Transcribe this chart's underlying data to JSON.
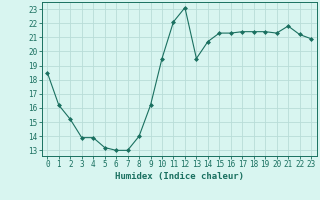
{
  "x": [
    0,
    1,
    2,
    3,
    4,
    5,
    6,
    7,
    8,
    9,
    10,
    11,
    12,
    13,
    14,
    15,
    16,
    17,
    18,
    19,
    20,
    21,
    22,
    23
  ],
  "y": [
    18.5,
    16.2,
    15.2,
    13.9,
    13.9,
    13.2,
    13.0,
    13.0,
    14.0,
    16.2,
    19.5,
    22.1,
    23.1,
    19.5,
    20.7,
    21.3,
    21.3,
    21.4,
    21.4,
    21.4,
    21.3,
    21.8,
    21.2,
    20.9
  ],
  "line_color": "#1a7060",
  "marker_color": "#1a7060",
  "bg_color": "#d8f5f0",
  "grid_color": "#b8ddd8",
  "xlabel": "Humidex (Indice chaleur)",
  "ylabel_ticks": [
    13,
    14,
    15,
    16,
    17,
    18,
    19,
    20,
    21,
    22,
    23
  ],
  "xlim": [
    -0.5,
    23.5
  ],
  "ylim": [
    12.6,
    23.5
  ],
  "label_color": "#1a7060",
  "tick_color": "#1a7060",
  "tick_fontsize": 5.5,
  "xlabel_fontsize": 6.5
}
